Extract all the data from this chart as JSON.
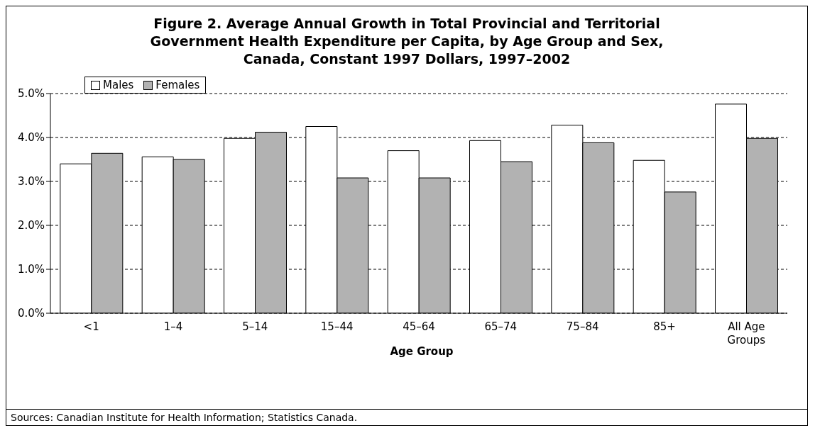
{
  "chart_data": {
    "type": "bar",
    "title": "Figure 2. Average Annual Growth in Total Provincial and Territorial Government Health Expenditure per Capita, by Age Group and Sex, Canada, Constant 1997 Dollars, 1997–2002",
    "xlabel": "Age Group",
    "categories": [
      "<1",
      "1–4",
      "5–14",
      "15–44",
      "45–64",
      "65–74",
      "75–84",
      "85+",
      "All Age Groups"
    ],
    "series": [
      {
        "name": "Males",
        "color": "#ffffff",
        "values": [
          3.4,
          3.56,
          3.98,
          4.25,
          3.7,
          3.93,
          4.28,
          3.48,
          4.76
        ]
      },
      {
        "name": "Females",
        "color": "#b2b2b2",
        "values": [
          3.64,
          3.5,
          4.12,
          3.08,
          3.08,
          3.45,
          3.88,
          2.76,
          3.98
        ]
      }
    ],
    "ylim": [
      0,
      5
    ],
    "yticks": [
      {
        "value": 0,
        "label": "0.0%"
      },
      {
        "value": 1,
        "label": "1.0%"
      },
      {
        "value": 2,
        "label": "2.0%"
      },
      {
        "value": 3,
        "label": "3.0%"
      },
      {
        "value": 4,
        "label": "4.0%"
      },
      {
        "value": 5,
        "label": "5.0%"
      }
    ],
    "grid": "y",
    "legend": "top left",
    "annotations": [
      "Sources: Canadian Institute for Health Information; Statistics Canada."
    ]
  }
}
